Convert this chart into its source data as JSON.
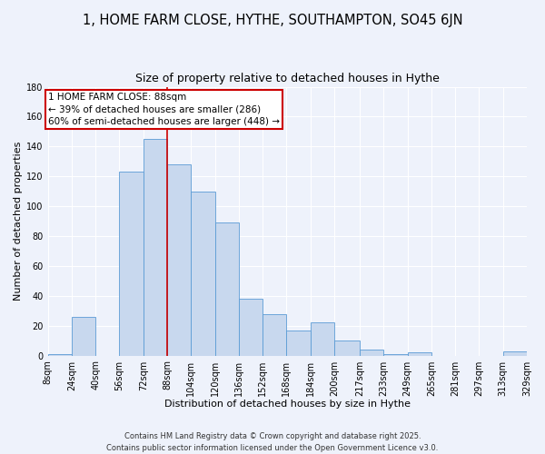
{
  "title": "1, HOME FARM CLOSE, HYTHE, SOUTHAMPTON, SO45 6JN",
  "subtitle": "Size of property relative to detached houses in Hythe",
  "xlabel": "Distribution of detached houses by size in Hythe",
  "ylabel": "Number of detached properties",
  "bar_color": "#c8d8ee",
  "bar_edge_color": "#5b9bd5",
  "background_color": "#eef2fb",
  "grid_color": "#ffffff",
  "vline_x": 88,
  "vline_color": "#cc0000",
  "annotation_lines": [
    "1 HOME FARM CLOSE: 88sqm",
    "← 39% of detached houses are smaller (286)",
    "60% of semi-detached houses are larger (448) →"
  ],
  "annotation_box_color": "#cc0000",
  "bin_edges": [
    8,
    24,
    40,
    56,
    72,
    88,
    104,
    120,
    136,
    152,
    168,
    184,
    200,
    217,
    233,
    249,
    265,
    281,
    297,
    313,
    329
  ],
  "bin_labels": [
    "8sqm",
    "24sqm",
    "40sqm",
    "56sqm",
    "72sqm",
    "88sqm",
    "104sqm",
    "120sqm",
    "136sqm",
    "152sqm",
    "168sqm",
    "184sqm",
    "200sqm",
    "217sqm",
    "233sqm",
    "249sqm",
    "265sqm",
    "281sqm",
    "297sqm",
    "313sqm",
    "329sqm"
  ],
  "counts": [
    1,
    26,
    0,
    123,
    145,
    128,
    110,
    89,
    38,
    28,
    17,
    22,
    10,
    4,
    1,
    2,
    0,
    0,
    0,
    3
  ],
  "ylim": [
    0,
    180
  ],
  "yticks": [
    0,
    20,
    40,
    60,
    80,
    100,
    120,
    140,
    160,
    180
  ],
  "footer_lines": [
    "Contains HM Land Registry data © Crown copyright and database right 2025.",
    "Contains public sector information licensed under the Open Government Licence v3.0."
  ],
  "title_fontsize": 10.5,
  "subtitle_fontsize": 9,
  "axis_label_fontsize": 8,
  "tick_fontsize": 7,
  "annotation_fontsize": 7.5,
  "footer_fontsize": 6
}
